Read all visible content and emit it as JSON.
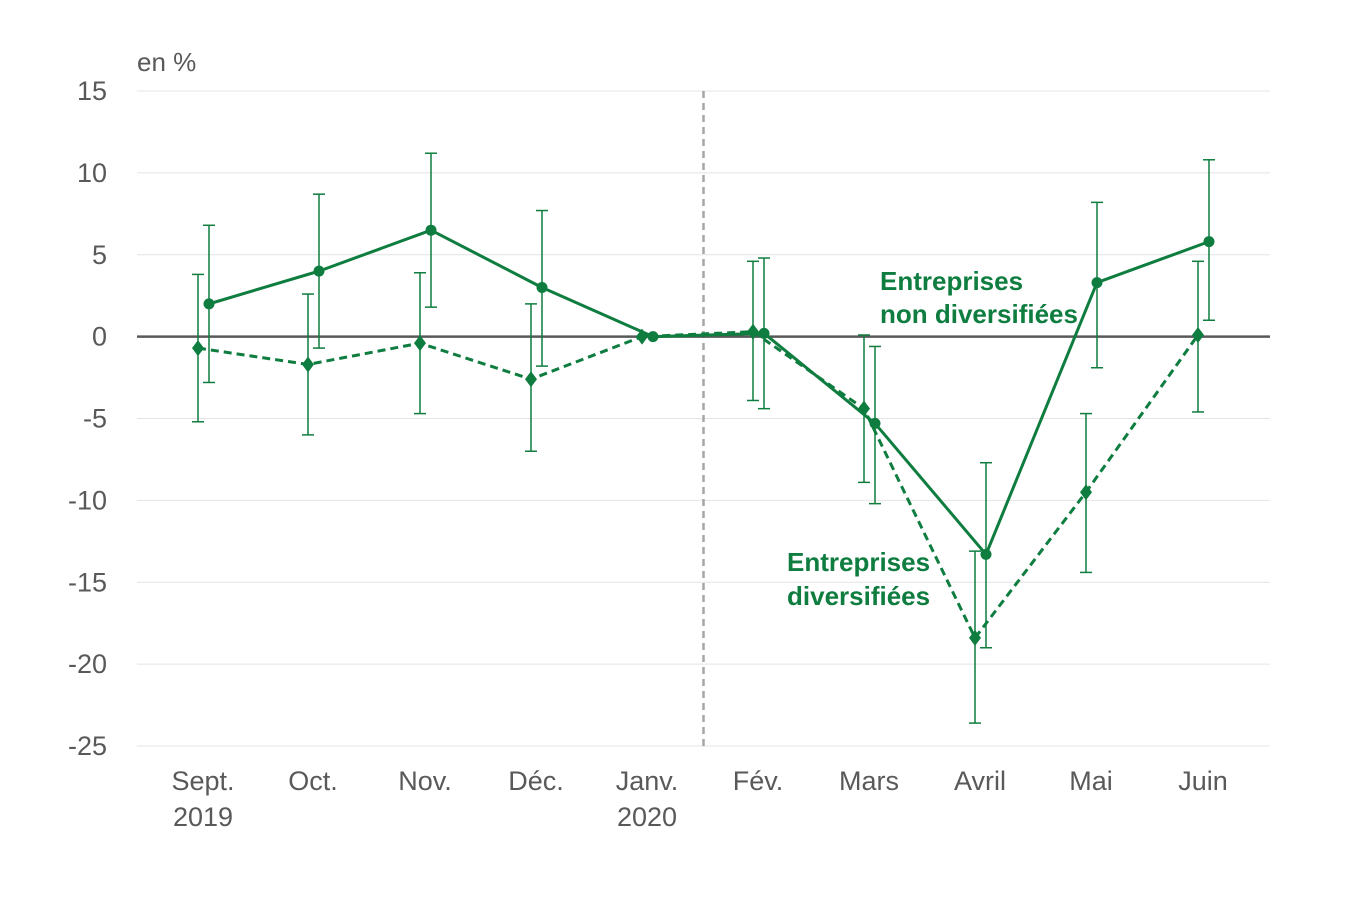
{
  "chart_data": {
    "type": "line",
    "unit_label": "en %",
    "categories": [
      {
        "line1": "Sept.",
        "line2": "2019"
      },
      {
        "line1": "Oct.",
        "line2": ""
      },
      {
        "line1": "Nov.",
        "line2": ""
      },
      {
        "line1": "Déc.",
        "line2": ""
      },
      {
        "line1": "Janv.",
        "line2": "2020"
      },
      {
        "line1": "Fév.",
        "line2": ""
      },
      {
        "line1": "Mars",
        "line2": ""
      },
      {
        "line1": "Avril",
        "line2": ""
      },
      {
        "line1": "Mai",
        "line2": ""
      },
      {
        "line1": "Juin",
        "line2": ""
      }
    ],
    "yticks": [
      "15",
      "10",
      "5",
      "0",
      "-5",
      "-10",
      "-15",
      "-20",
      "-25"
    ],
    "ylim": [
      -25,
      15
    ],
    "grid": true,
    "vertical_marker_between": [
      "Janv.",
      "Fév."
    ],
    "color": "#0e7d3f",
    "series": [
      {
        "name_line1": "Entreprises",
        "name_line2": "non diversifiées",
        "style": "solid",
        "marker": "circle",
        "values": [
          2.0,
          4.0,
          6.5,
          3.0,
          0.0,
          0.2,
          -5.3,
          -13.3,
          3.3,
          5.8
        ],
        "ci_low": [
          -2.8,
          -0.7,
          1.8,
          -1.8,
          0.0,
          -4.4,
          -10.2,
          -19.0,
          -1.9,
          1.0
        ],
        "ci_high": [
          6.8,
          8.7,
          11.2,
          7.7,
          0.0,
          4.8,
          -0.6,
          -7.7,
          8.2,
          10.8
        ]
      },
      {
        "name_line1": "Entreprises",
        "name_line2": "diversifiées",
        "style": "dashed",
        "marker": "diamond",
        "values": [
          -0.7,
          -1.7,
          -0.4,
          -2.6,
          0.0,
          0.3,
          -4.4,
          -18.4,
          -9.5,
          0.1
        ],
        "ci_low": [
          -5.2,
          -6.0,
          -4.7,
          -7.0,
          0.0,
          -3.9,
          -8.9,
          -23.6,
          -14.4,
          -4.6
        ],
        "ci_high": [
          3.8,
          2.6,
          3.9,
          2.0,
          0.0,
          4.6,
          0.1,
          -13.1,
          -4.7,
          4.6
        ]
      }
    ]
  }
}
